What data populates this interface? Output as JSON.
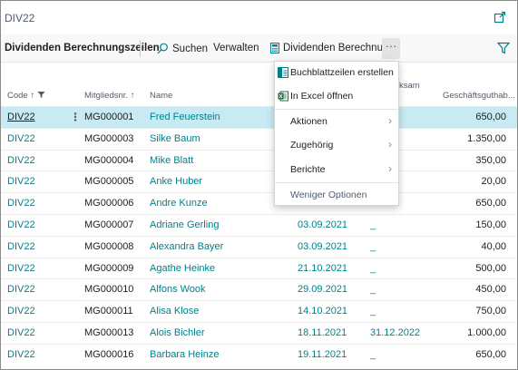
{
  "window": {
    "title": "DIV22"
  },
  "actionbar": {
    "page_name": "Dividenden Berechnungszeilen",
    "search_label": "Suchen",
    "manage_label": "Verwalten",
    "calc_label": "Dividenden Berechnung",
    "more_label": "···"
  },
  "columns": {
    "code": "Code",
    "member": "Mitgliedsnr.",
    "name": "Name",
    "effective": "ksam",
    "balance": "Geschäftsguthab..."
  },
  "rows": [
    {
      "code": "DIV22",
      "member": "MG000001",
      "name": "Fred Feuerstein",
      "date": "",
      "end": "",
      "amount": "650,00"
    },
    {
      "code": "DIV22",
      "member": "MG000003",
      "name": "Silke Baum",
      "date": "",
      "end": "",
      "amount": "1.350,00"
    },
    {
      "code": "DIV22",
      "member": "MG000004",
      "name": "Mike Blatt",
      "date": "",
      "end": "",
      "amount": "350,00"
    },
    {
      "code": "DIV22",
      "member": "MG000005",
      "name": "Anke Huber",
      "date": "",
      "end": "",
      "amount": "20,00"
    },
    {
      "code": "DIV22",
      "member": "MG000006",
      "name": "Andre Kunze",
      "date": "",
      "end": "",
      "amount": "650,00"
    },
    {
      "code": "DIV22",
      "member": "MG000007",
      "name": "Adriane Gerling",
      "date": "03.09.2021",
      "end": "_",
      "amount": "150,00"
    },
    {
      "code": "DIV22",
      "member": "MG000008",
      "name": "Alexandra Bayer",
      "date": "03.09.2021",
      "end": "_",
      "amount": "40,00"
    },
    {
      "code": "DIV22",
      "member": "MG000009",
      "name": "Agathe Heinke",
      "date": "21.10.2021",
      "end": "_",
      "amount": "500,00"
    },
    {
      "code": "DIV22",
      "member": "MG000010",
      "name": "Alfons Wook",
      "date": "29.09.2021",
      "end": "_",
      "amount": "450,00"
    },
    {
      "code": "DIV22",
      "member": "MG000011",
      "name": "Alisa Klose",
      "date": "14.10.2021",
      "end": "_",
      "amount": "750,00"
    },
    {
      "code": "DIV22",
      "member": "MG000013",
      "name": "Alois Bichler",
      "date": "18.11.2021",
      "end": "31.12.2022",
      "amount": "1.000,00"
    },
    {
      "code": "DIV22",
      "member": "MG000016",
      "name": "Barbara Heinze",
      "date": "19.11.2021",
      "end": "_",
      "amount": "650,00"
    }
  ],
  "menu": {
    "item1": "Buchblattzeilen erstellen",
    "item2": "In Excel öffnen",
    "item3": "Aktionen",
    "item4": "Zugehörig",
    "item5": "Berichte",
    "item6": "Weniger Optionen"
  },
  "colors": {
    "accent": "#00818a",
    "selected_row": "#c8eaf3"
  }
}
